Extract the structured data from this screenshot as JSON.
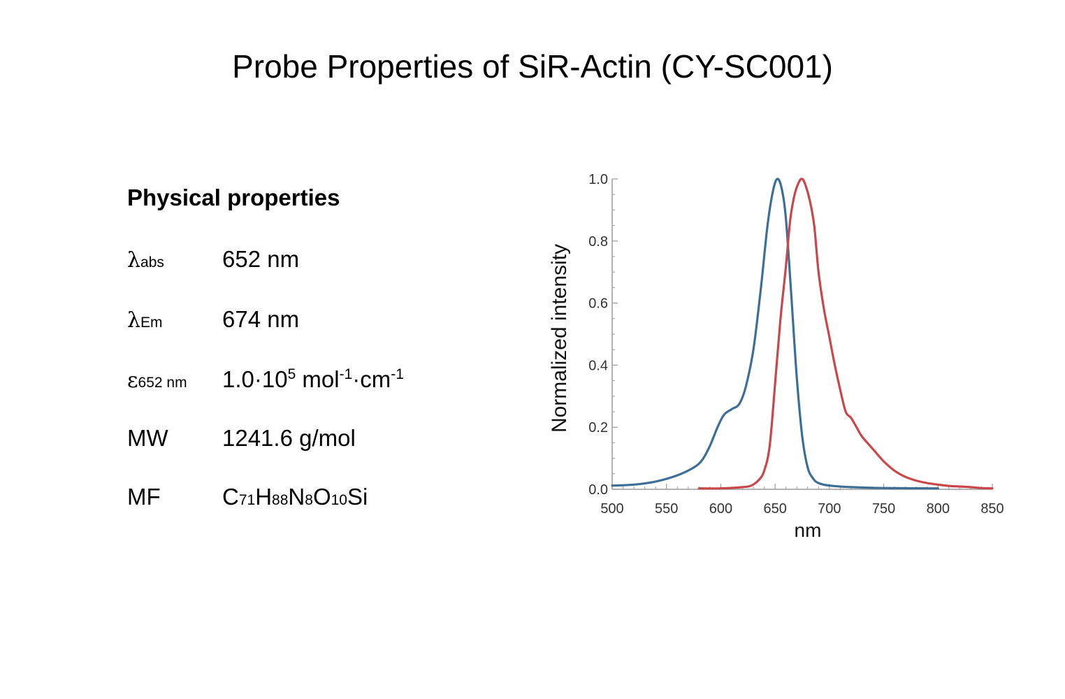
{
  "page": {
    "title": "Probe Properties of SiR-Actin (CY-SC001)"
  },
  "properties": {
    "heading": "Physical properties",
    "rows": [
      {
        "symbol": "λ",
        "subscript": "abs",
        "value": "652 nm"
      },
      {
        "symbol": "λ",
        "subscript": "Em",
        "value": "674 nm"
      },
      {
        "symbol": "ε",
        "subscript": "652 nm",
        "value_base": "1.0·10",
        "value_exp": "5",
        "value_unit1": " mol",
        "value_exp2": "-1",
        "value_unit2": "·cm",
        "value_exp3": "-1"
      },
      {
        "symbol": "MW",
        "value": "1241.6 g/mol"
      },
      {
        "symbol": "MF",
        "formula": [
          {
            "t": "C"
          },
          {
            "s": "71"
          },
          {
            "t": "H"
          },
          {
            "s": "88"
          },
          {
            "t": "N"
          },
          {
            "s": "8"
          },
          {
            "t": "O"
          },
          {
            "s": "10"
          },
          {
            "t": "Si"
          }
        ]
      }
    ]
  },
  "chart_data": {
    "type": "line",
    "title": "",
    "xlabel": "nm",
    "ylabel": "Normalized intensity",
    "xlim": [
      500,
      850
    ],
    "ylim": [
      0,
      1.0
    ],
    "x_ticks": [
      "500",
      "550",
      "600",
      "650",
      "700",
      "750",
      "800",
      "850"
    ],
    "y_ticks": [
      "0.0",
      "0.2",
      "0.4",
      "0.6",
      "0.8",
      "1.0"
    ],
    "grid": false,
    "legend": "none",
    "series": [
      {
        "color": "#3d6f96",
        "points": [
          [
            500,
            0.012
          ],
          [
            520,
            0.015
          ],
          [
            540,
            0.025
          ],
          [
            560,
            0.045
          ],
          [
            575,
            0.07
          ],
          [
            583,
            0.095
          ],
          [
            590,
            0.14
          ],
          [
            597,
            0.2
          ],
          [
            603,
            0.24
          ],
          [
            610,
            0.258
          ],
          [
            617,
            0.275
          ],
          [
            623,
            0.33
          ],
          [
            630,
            0.45
          ],
          [
            637,
            0.65
          ],
          [
            643,
            0.85
          ],
          [
            648,
            0.96
          ],
          [
            652,
            1.0
          ],
          [
            656,
            0.97
          ],
          [
            660,
            0.87
          ],
          [
            665,
            0.62
          ],
          [
            670,
            0.36
          ],
          [
            675,
            0.17
          ],
          [
            680,
            0.07
          ],
          [
            685,
            0.035
          ],
          [
            690,
            0.02
          ],
          [
            700,
            0.012
          ],
          [
            720,
            0.007
          ],
          [
            750,
            0.004
          ],
          [
            800,
            0.003
          ]
        ]
      },
      {
        "color": "#c9474a",
        "points": [
          [
            580,
            0.003
          ],
          [
            600,
            0.003
          ],
          [
            620,
            0.007
          ],
          [
            628,
            0.012
          ],
          [
            635,
            0.03
          ],
          [
            640,
            0.06
          ],
          [
            645,
            0.14
          ],
          [
            650,
            0.34
          ],
          [
            655,
            0.55
          ],
          [
            660,
            0.72
          ],
          [
            664,
            0.87
          ],
          [
            668,
            0.95
          ],
          [
            672,
            0.99
          ],
          [
            675,
            1.0
          ],
          [
            678,
            0.98
          ],
          [
            682,
            0.93
          ],
          [
            686,
            0.85
          ],
          [
            690,
            0.7
          ],
          [
            695,
            0.58
          ],
          [
            700,
            0.49
          ],
          [
            705,
            0.4
          ],
          [
            710,
            0.32
          ],
          [
            715,
            0.25
          ],
          [
            720,
            0.23
          ],
          [
            725,
            0.2
          ],
          [
            730,
            0.17
          ],
          [
            740,
            0.13
          ],
          [
            750,
            0.09
          ],
          [
            760,
            0.06
          ],
          [
            770,
            0.04
          ],
          [
            780,
            0.028
          ],
          [
            790,
            0.02
          ],
          [
            800,
            0.015
          ],
          [
            810,
            0.011
          ],
          [
            820,
            0.009
          ],
          [
            830,
            0.007
          ],
          [
            840,
            0.004
          ],
          [
            850,
            0.003
          ]
        ]
      }
    ]
  }
}
